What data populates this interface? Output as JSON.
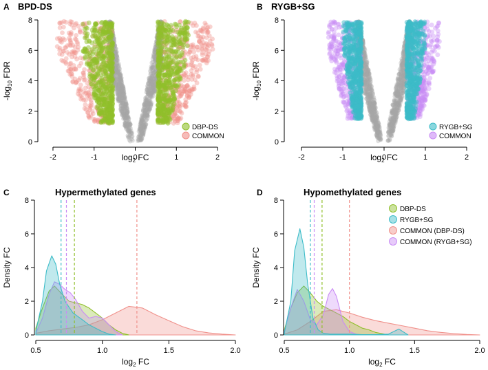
{
  "chart_data": [
    {
      "panel": "A",
      "type": "scatter",
      "title": "BPD-DS",
      "xlabel_base": "log",
      "xlabel_sub": "2",
      "xlabel_tail": "FC",
      "ylabel_head": "-log",
      "ylabel_sub": "10",
      "ylabel_tail": "FDR",
      "xlim": [
        -2.2,
        2.2
      ],
      "ylim": [
        0,
        8
      ],
      "xticks": [
        -2,
        -1,
        0,
        1,
        2
      ],
      "yticks": [
        0,
        2,
        4,
        6,
        8
      ],
      "background_color": "#a6a6a6",
      "legend": [
        {
          "label": "DBP-DS",
          "color": "#8fbf2a"
        },
        {
          "label": "COMMON",
          "color": "#f0908a"
        }
      ],
      "significant_cutoff_abs_logfc": 0.55,
      "significant_min_fdr": 1.2,
      "max_abs_logfc": 1.9
    },
    {
      "panel": "B",
      "type": "scatter",
      "title": "RYGB+SG",
      "xlabel_base": "log",
      "xlabel_sub": "2",
      "xlabel_tail": "FC",
      "ylabel_head": "-log",
      "ylabel_sub": "10",
      "ylabel_tail": "FDR",
      "xlim": [
        -2.2,
        2.2
      ],
      "ylim": [
        0,
        8
      ],
      "xticks": [
        -2,
        -1,
        0,
        1,
        2
      ],
      "yticks": [
        0,
        2,
        4,
        6,
        8
      ],
      "background_color": "#a6a6a6",
      "legend": [
        {
          "label": "RYGB+SG",
          "color": "#3cbcc8"
        },
        {
          "label": "COMMON",
          "color": "#c98cf5"
        }
      ],
      "significant_cutoff_abs_logfc": 0.55,
      "significant_min_fdr": 1.5,
      "max_abs_logfc": 1.35
    },
    {
      "panel": "C",
      "type": "area",
      "title": "Hypermethylated genes",
      "xlabel_base": "log",
      "xlabel_sub": "2",
      "xlabel_tail": "FC",
      "ylabel": "Density FC",
      "xlim": [
        0.5,
        2.0
      ],
      "ylim": [
        0,
        8
      ],
      "xticks": [
        "0.5",
        "1.0",
        "1.5",
        "2.0"
      ],
      "yticks": [
        0,
        2,
        4,
        6,
        8
      ],
      "series": [
        {
          "name": "DBP-DS",
          "color": "#8fbf2a",
          "median": 0.79,
          "x": [
            0.5,
            0.55,
            0.6,
            0.64,
            0.7,
            0.75,
            0.8,
            0.85,
            0.9,
            0.95,
            1.0,
            1.05,
            1.1,
            1.15,
            1.2
          ],
          "y": [
            0.4,
            1.6,
            2.6,
            2.9,
            2.4,
            2.0,
            1.9,
            1.8,
            1.6,
            1.3,
            1.0,
            0.6,
            0.3,
            0.1,
            0.0
          ]
        },
        {
          "name": "RYGB+SG",
          "color": "#3cbcc8",
          "median": 0.69,
          "x": [
            0.5,
            0.55,
            0.58,
            0.62,
            0.65,
            0.68,
            0.72,
            0.78,
            0.85,
            0.9,
            0.95,
            1.0,
            1.05,
            1.1
          ],
          "y": [
            0.2,
            2.0,
            3.8,
            4.7,
            4.2,
            3.0,
            2.0,
            1.3,
            0.9,
            0.6,
            0.4,
            0.2,
            0.05,
            0.0
          ]
        },
        {
          "name": "COMMON (DBP-DS)",
          "color": "#f0908a",
          "median": 1.26,
          "x": [
            0.5,
            0.6,
            0.7,
            0.8,
            0.9,
            1.0,
            1.1,
            1.2,
            1.3,
            1.4,
            1.5,
            1.6,
            1.7,
            1.8,
            1.9,
            2.0
          ],
          "y": [
            0.1,
            0.25,
            0.35,
            0.45,
            0.6,
            0.9,
            1.3,
            1.7,
            1.6,
            1.2,
            0.85,
            0.5,
            0.25,
            0.12,
            0.05,
            0.0
          ]
        },
        {
          "name": "COMMON (RYGB+SG)",
          "color": "#c98cf5",
          "median": 0.73,
          "x": [
            0.5,
            0.55,
            0.6,
            0.64,
            0.68,
            0.72,
            0.76,
            0.8,
            0.85,
            0.9,
            0.95,
            1.0,
            1.05,
            1.1,
            1.15
          ],
          "y": [
            0.1,
            1.0,
            2.4,
            3.15,
            3.0,
            2.7,
            2.5,
            2.1,
            1.4,
            1.0,
            1.1,
            1.0,
            0.6,
            0.2,
            0.0
          ]
        }
      ]
    },
    {
      "panel": "D",
      "type": "area",
      "title": "Hypomethylated genes",
      "xlabel_base": "log",
      "xlabel_sub": "2",
      "xlabel_tail": "FC",
      "ylabel": "Density FC",
      "xlim": [
        0.5,
        2.0
      ],
      "ylim": [
        0,
        8
      ],
      "xticks": [
        "0.5",
        "1.0",
        "1.5",
        "2.0"
      ],
      "yticks": [
        0,
        2,
        4,
        6,
        8
      ],
      "legend": [
        "DBP-DS",
        "RYGB+SG",
        "COMMON (DBP-DS)",
        "COMMON (RYGB+SG)"
      ],
      "series": [
        {
          "name": "DBP-DS",
          "color": "#8fbf2a",
          "median": 0.79,
          "x": [
            0.5,
            0.55,
            0.6,
            0.65,
            0.7,
            0.75,
            0.8,
            0.85,
            0.9,
            0.95,
            1.0,
            1.05,
            1.1,
            1.15,
            1.2,
            1.3
          ],
          "y": [
            0.3,
            1.6,
            2.5,
            2.9,
            2.5,
            2.0,
            1.7,
            1.5,
            1.3,
            1.1,
            0.8,
            0.6,
            0.4,
            0.3,
            0.15,
            0.0
          ]
        },
        {
          "name": "RYGB+SG",
          "color": "#3cbcc8",
          "median": 0.7,
          "x": [
            0.5,
            0.55,
            0.58,
            0.62,
            0.65,
            0.68,
            0.72,
            0.76,
            0.8,
            0.85,
            0.9,
            1.0,
            1.1,
            1.2,
            1.3,
            1.38,
            1.45
          ],
          "y": [
            0.1,
            2.0,
            5.0,
            6.3,
            5.2,
            3.0,
            1.0,
            0.3,
            0.1,
            0.05,
            0.05,
            0.05,
            0.02,
            0.02,
            0.05,
            0.35,
            0.0
          ]
        },
        {
          "name": "COMMON (DBP-DS)",
          "color": "#f0908a",
          "median": 1.0,
          "x": [
            0.5,
            0.6,
            0.7,
            0.8,
            0.9,
            1.0,
            1.1,
            1.2,
            1.3,
            1.4,
            1.5,
            1.6,
            1.7,
            1.8,
            1.9,
            2.0
          ],
          "y": [
            0.05,
            0.3,
            0.8,
            1.4,
            1.5,
            1.3,
            1.05,
            0.85,
            0.7,
            0.55,
            0.4,
            0.25,
            0.15,
            0.08,
            0.03,
            0.0
          ]
        },
        {
          "name": "COMMON (RYGB+SG)",
          "color": "#c98cf5",
          "median": 0.73,
          "x": [
            0.5,
            0.55,
            0.6,
            0.65,
            0.7,
            0.75,
            0.8,
            0.84,
            0.87,
            0.9,
            0.95,
            1.0,
            1.05,
            1.1
          ],
          "y": [
            0.2,
            1.6,
            2.7,
            2.0,
            0.9,
            0.6,
            1.2,
            2.4,
            2.75,
            2.3,
            0.8,
            0.2,
            0.05,
            0.0
          ]
        }
      ]
    }
  ]
}
